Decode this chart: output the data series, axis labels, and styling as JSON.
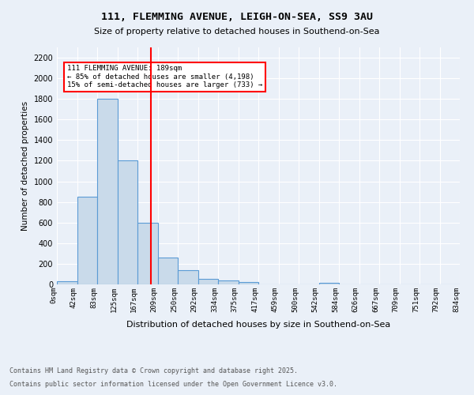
{
  "title_line1": "111, FLEMMING AVENUE, LEIGH-ON-SEA, SS9 3AU",
  "title_line2": "Size of property relative to detached houses in Southend-on-Sea",
  "xlabel": "Distribution of detached houses by size in Southend-on-Sea",
  "ylabel": "Number of detached properties",
  "bin_labels": [
    "0sqm",
    "42sqm",
    "83sqm",
    "125sqm",
    "167sqm",
    "209sqm",
    "250sqm",
    "292sqm",
    "334sqm",
    "375sqm",
    "417sqm",
    "459sqm",
    "500sqm",
    "542sqm",
    "584sqm",
    "626sqm",
    "667sqm",
    "709sqm",
    "751sqm",
    "792sqm",
    "834sqm"
  ],
  "bar_heights": [
    30,
    850,
    1800,
    1200,
    600,
    260,
    135,
    55,
    35,
    25,
    0,
    0,
    0,
    15,
    0,
    0,
    0,
    0,
    0,
    0
  ],
  "bar_color": "#c9daea",
  "bar_edge_color": "#5b9bd5",
  "red_line_x": 4.65,
  "annotation_text": "111 FLEMMING AVENUE: 189sqm\n← 85% of detached houses are smaller (4,198)\n15% of semi-detached houses are larger (733) →",
  "annotation_box_color": "white",
  "annotation_box_edge_color": "red",
  "ylim": [
    0,
    2300
  ],
  "yticks": [
    0,
    200,
    400,
    600,
    800,
    1000,
    1200,
    1400,
    1600,
    1800,
    2000,
    2200
  ],
  "footnote1": "Contains HM Land Registry data © Crown copyright and database right 2025.",
  "footnote2": "Contains public sector information licensed under the Open Government Licence v3.0.",
  "bg_color": "#eaf0f8",
  "plot_bg_color": "#eaf0f8",
  "grid_color": "white"
}
